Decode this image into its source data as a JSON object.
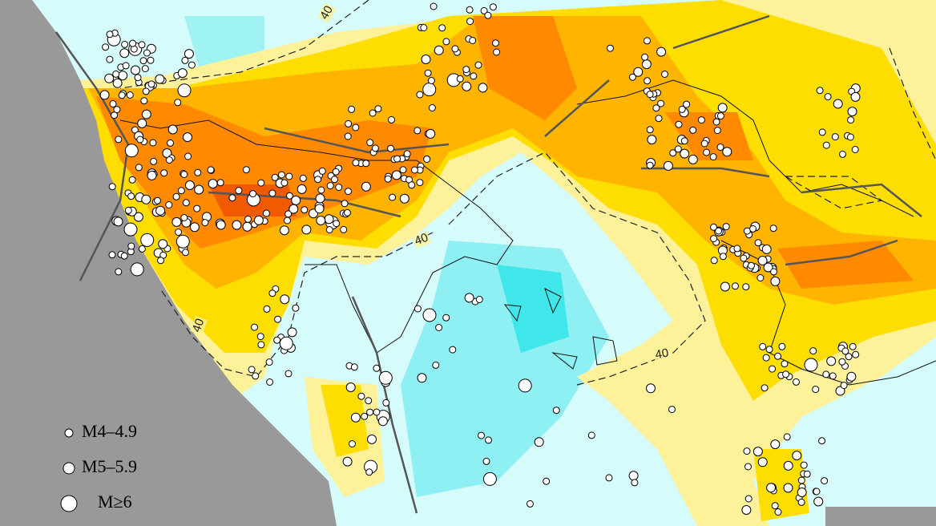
{
  "legend": {
    "items": [
      "M4–4.9",
      "M5–5.9",
      "M≥6"
    ]
  },
  "contour_labels": [
    "40",
    "40",
    "40",
    "40"
  ]
}
